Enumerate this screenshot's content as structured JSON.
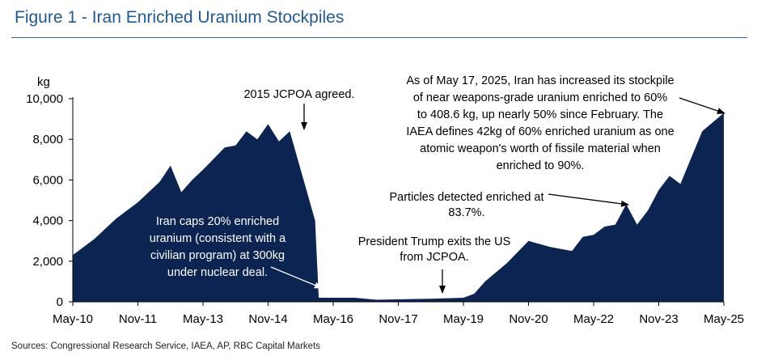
{
  "figure": {
    "title": "Figure 1 - Iran Enriched Uranium Stockpiles",
    "source": "Sources: Congressional Research Service, IAEA, AP, RBC Capital Markets"
  },
  "colors": {
    "title": "#1f5a96",
    "area": "#0b2451",
    "rule": "#2f6fa8"
  },
  "chart_data": {
    "type": "area",
    "title": "Figure 1 - Iran Enriched Uranium Stockpiles",
    "ylabel": "kg",
    "xlabel": "",
    "ylim": [
      0,
      10000
    ],
    "yticks": [
      {
        "value": 0,
        "label": "0"
      },
      {
        "value": 2000,
        "label": "2,000"
      },
      {
        "value": 4000,
        "label": "4,000"
      },
      {
        "value": 6000,
        "label": "6,000"
      },
      {
        "value": 8000,
        "label": "8,000"
      },
      {
        "value": 10000,
        "label": "10,000"
      }
    ],
    "xlim": [
      "2010-05",
      "2025-05"
    ],
    "xticks": [
      {
        "date": "2010-05",
        "label": "May-10"
      },
      {
        "date": "2011-11",
        "label": "Nov-11"
      },
      {
        "date": "2013-05",
        "label": "May-13"
      },
      {
        "date": "2014-11",
        "label": "Nov-14"
      },
      {
        "date": "2016-05",
        "label": "May-16"
      },
      {
        "date": "2017-11",
        "label": "Nov-17"
      },
      {
        "date": "2019-05",
        "label": "May-19"
      },
      {
        "date": "2020-11",
        "label": "Nov-20"
      },
      {
        "date": "2022-05",
        "label": "May-22"
      },
      {
        "date": "2023-11",
        "label": "Nov-23"
      },
      {
        "date": "2025-05",
        "label": "May-25"
      }
    ],
    "grid": false,
    "legend": "none",
    "series": [
      {
        "points": [
          {
            "x": "2010-05",
            "y": 2300
          },
          {
            "x": "2010-11",
            "y": 3100
          },
          {
            "x": "2011-05",
            "y": 4100
          },
          {
            "x": "2011-11",
            "y": 4900
          },
          {
            "x": "2012-05",
            "y": 5900
          },
          {
            "x": "2012-08",
            "y": 6700
          },
          {
            "x": "2012-11",
            "y": 5400
          },
          {
            "x": "2013-02",
            "y": 6000
          },
          {
            "x": "2013-05",
            "y": 6500
          },
          {
            "x": "2013-11",
            "y": 7600
          },
          {
            "x": "2014-02",
            "y": 7700
          },
          {
            "x": "2014-05",
            "y": 8400
          },
          {
            "x": "2014-08",
            "y": 8000
          },
          {
            "x": "2014-11",
            "y": 8750
          },
          {
            "x": "2015-02",
            "y": 7900
          },
          {
            "x": "2015-05",
            "y": 8400
          },
          {
            "x": "2015-12",
            "y": 4000
          },
          {
            "x": "2016-01",
            "y": 200
          },
          {
            "x": "2016-11",
            "y": 200
          },
          {
            "x": "2017-05",
            "y": 100
          },
          {
            "x": "2018-08",
            "y": 150
          },
          {
            "x": "2019-05",
            "y": 200
          },
          {
            "x": "2019-08",
            "y": 400
          },
          {
            "x": "2019-11",
            "y": 1000
          },
          {
            "x": "2020-05",
            "y": 1900
          },
          {
            "x": "2020-11",
            "y": 3000
          },
          {
            "x": "2021-05",
            "y": 2700
          },
          {
            "x": "2021-11",
            "y": 2500
          },
          {
            "x": "2022-02",
            "y": 3200
          },
          {
            "x": "2022-05",
            "y": 3300
          },
          {
            "x": "2022-08",
            "y": 3700
          },
          {
            "x": "2022-11",
            "y": 3800
          },
          {
            "x": "2023-02",
            "y": 4800
          },
          {
            "x": "2023-05",
            "y": 3800
          },
          {
            "x": "2023-08",
            "y": 4500
          },
          {
            "x": "2023-11",
            "y": 5500
          },
          {
            "x": "2024-02",
            "y": 6200
          },
          {
            "x": "2024-05",
            "y": 5800
          },
          {
            "x": "2024-08",
            "y": 7100
          },
          {
            "x": "2024-11",
            "y": 8400
          },
          {
            "x": "2025-05",
            "y": 9300
          }
        ]
      }
    ],
    "annotations": [
      {
        "lines": [
          "2015 JCPOA agreed."
        ],
        "color": "black",
        "arrow_to": {
          "x": "2015-05",
          "y": 8400
        }
      },
      {
        "lines": [
          "As of May 17, 2025, Iran has increased its stockpile",
          "of near weapons-grade uranium enriched to 60%",
          "to 408.6 kg, up nearly 50% since February. The",
          "IAEA defines 42kg of 60% enriched uranium as one",
          "atomic weapon's worth of fissile material when",
          "enriched to 90%."
        ],
        "color": "black",
        "arrow_to": {
          "x": "2025-05",
          "y": 9300
        }
      },
      {
        "lines": [
          "Particles detected enriched at",
          "83.7%."
        ],
        "color": "black",
        "arrow_to": {
          "x": "2023-02",
          "y": 4800
        }
      },
      {
        "lines": [
          "President Trump exits the US",
          "from JCPOA."
        ],
        "color": "black",
        "arrow_to": {
          "x": "2018-05",
          "y": 150
        }
      },
      {
        "lines": [
          "Iran caps 20% enriched",
          "uranium (consistent with a",
          "civilian program) at 300kg",
          "under nuclear deal."
        ],
        "color": "white",
        "arrow_to": {
          "x": "2016-01",
          "y": 500
        }
      }
    ]
  }
}
